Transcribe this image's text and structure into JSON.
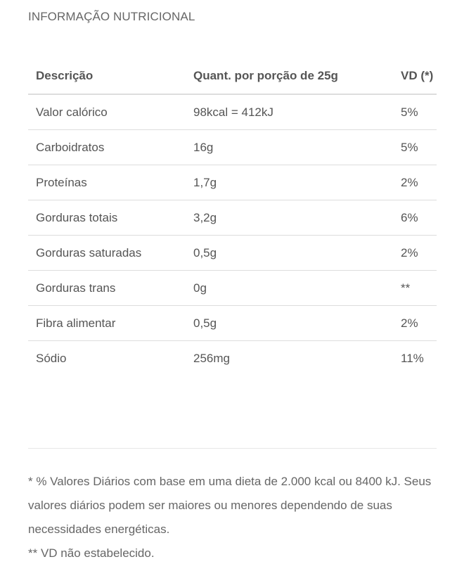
{
  "section_title": "INFORMAÇÃO NUTRICIONAL",
  "table": {
    "headers": {
      "description": "Descrição",
      "quantity": "Quant. por porção de 25g",
      "daily_value": "VD (*)"
    },
    "rows": [
      {
        "description": "Valor calórico",
        "quantity": "98kcal = 412kJ",
        "daily_value": "5%"
      },
      {
        "description": "Carboidratos",
        "quantity": "16g",
        "daily_value": "5%"
      },
      {
        "description": "Proteínas",
        "quantity": "1,7g",
        "daily_value": "2%"
      },
      {
        "description": "Gorduras totais",
        "quantity": "3,2g",
        "daily_value": "6%"
      },
      {
        "description": "Gorduras saturadas",
        "quantity": "0,5g",
        "daily_value": "2%"
      },
      {
        "description": "Gorduras trans",
        "quantity": "0g",
        "daily_value": "**"
      },
      {
        "description": "Fibra alimentar",
        "quantity": "0,5g",
        "daily_value": "2%"
      },
      {
        "description": "Sódio",
        "quantity": "256mg",
        "daily_value": "11%"
      }
    ]
  },
  "footnotes": {
    "daily_values_note": "* % Valores Diários com base em uma dieta de 2.000 kcal ou 8400 kJ. Seus valores diários podem ser maiores ou menores dependendo de suas necessidades energéticas.",
    "not_established_note": "** VD não estabelecido."
  }
}
